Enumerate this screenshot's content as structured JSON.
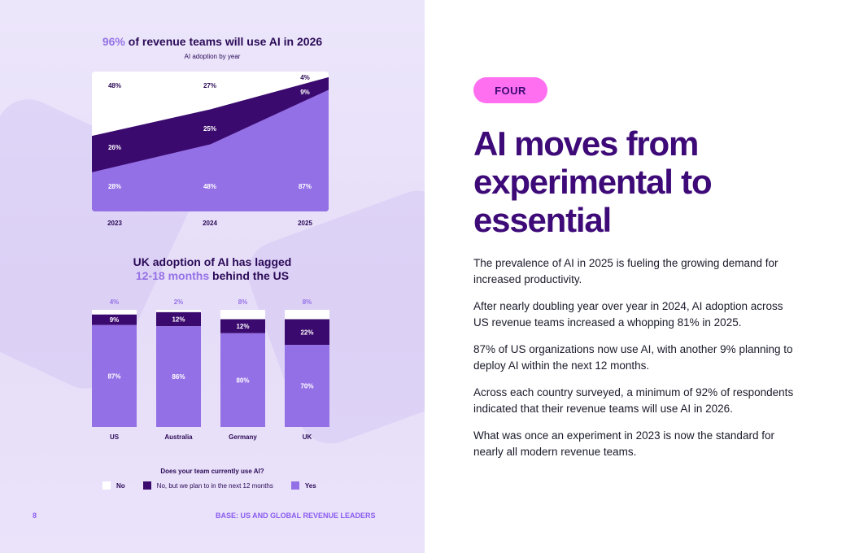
{
  "left_panel": {
    "area_chart_title_highlight": "96%",
    "area_chart_title_rest": " of revenue teams will use AI in 2026",
    "area_chart_subtitle": "AI adoption by year",
    "bar_chart_title_line1": "UK adoption of AI has lagged",
    "bar_chart_title_highlight": "12-18 months",
    "bar_chart_title_rest": " behind the US",
    "legend_title": "Does your team currently use AI?",
    "legend": [
      {
        "label": "No",
        "color": "#ffffff"
      },
      {
        "label": "No, but we plan to in the next 12 months",
        "color": "#3b0a6e"
      },
      {
        "label": "Yes",
        "color": "#9470e6"
      }
    ],
    "page_number": "8",
    "footer": "BASE: US AND GLOBAL REVENUE LEADERS"
  },
  "right_panel": {
    "badge": "FOUR",
    "headline_lines": [
      "AI moves from",
      "experimental to",
      "essential"
    ],
    "paragraphs": [
      "The prevalence of AI in 2025 is fueling the growing demand for increased productivity.",
      "After nearly doubling year over year in 2024, AI adoption across US revenue teams increased a whopping 81% in 2025.",
      "87% of US organizations now use AI, with another 9% planning to deploy AI within the next 12 months.",
      "Across each country surveyed, a minimum of 92% of respondents indicated that their revenue teams will use AI in 2026.",
      "What was once an experiment in 2023 is now the standard for nearly all modern revenue teams."
    ]
  },
  "colors": {
    "no": "#ffffff",
    "plan": "#3b0a6e",
    "yes": "#9470e6",
    "accent": "#9572e6",
    "badge": "#ff6ff0",
    "headline": "#3d0a78",
    "footer": "#8a5cf0"
  },
  "chart_data": [
    {
      "type": "area",
      "title": "96% of revenue teams will use AI in 2026",
      "subtitle": "AI adoption by year",
      "categories": [
        "2023",
        "2024",
        "2025"
      ],
      "stacked": true,
      "ylim": [
        0,
        100
      ],
      "series": [
        {
          "name": "Yes",
          "values": [
            28,
            48,
            87
          ],
          "labels": [
            "28%",
            "48%",
            "87%"
          ]
        },
        {
          "name": "No, but we plan to in the next 12 months",
          "values": [
            26,
            25,
            9
          ],
          "labels": [
            "26%",
            "25%",
            "9%"
          ]
        },
        {
          "name": "No",
          "values": [
            48,
            27,
            4
          ],
          "labels": [
            "48%",
            "27%",
            "4%"
          ]
        }
      ]
    },
    {
      "type": "bar",
      "stacked": true,
      "title": "UK adoption of AI has lagged 12-18 months behind the US",
      "categories": [
        "US",
        "Australia",
        "Germany",
        "UK"
      ],
      "ylim": [
        0,
        100
      ],
      "series": [
        {
          "name": "Yes",
          "values": [
            87,
            86,
            80,
            70
          ],
          "labels": [
            "87%",
            "86%",
            "80%",
            "70%"
          ]
        },
        {
          "name": "No, but we plan to in the next 12 months",
          "values": [
            9,
            12,
            12,
            22
          ],
          "labels": [
            "9%",
            "12%",
            "12%",
            "22%"
          ]
        },
        {
          "name": "No",
          "values": [
            4,
            2,
            8,
            8
          ],
          "labels": [
            "4%",
            "2%",
            "8%",
            "8%"
          ]
        }
      ]
    }
  ]
}
